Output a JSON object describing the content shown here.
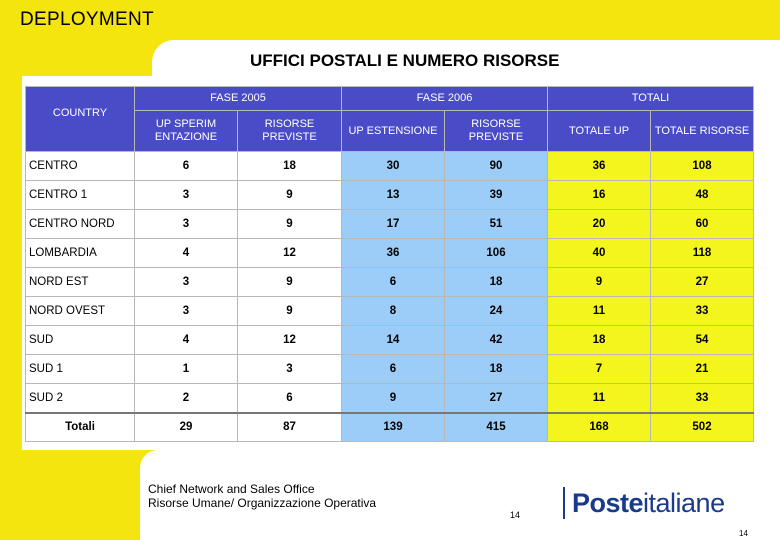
{
  "header": {
    "section": "DEPLOYMENT",
    "title": "UFFICI POSTALI E NUMERO RISORSE"
  },
  "table": {
    "groups": [
      "FASE 2005",
      "FASE 2006",
      "TOTALI"
    ],
    "country_label": "COUNTRY",
    "columns": [
      "UP SPERIM ENTAZIONE",
      "RISORSE PREVISTE",
      "UP ESTENSIONE",
      "RISORSE PREVISTE",
      "TOTALE UP",
      "TOTALE RISORSE"
    ],
    "rows": [
      {
        "label": "CENTRO",
        "values": [
          "6",
          "18",
          "30",
          "90",
          "36",
          "108"
        ]
      },
      {
        "label": "CENTRO 1",
        "values": [
          "3",
          "9",
          "13",
          "39",
          "16",
          "48"
        ]
      },
      {
        "label": "CENTRO NORD",
        "values": [
          "3",
          "9",
          "17",
          "51",
          "20",
          "60"
        ]
      },
      {
        "label": "LOMBARDIA",
        "values": [
          "4",
          "12",
          "36",
          "106",
          "40",
          "118"
        ]
      },
      {
        "label": "NORD EST",
        "values": [
          "3",
          "9",
          "6",
          "18",
          "9",
          "27"
        ]
      },
      {
        "label": "NORD OVEST",
        "values": [
          "3",
          "9",
          "8",
          "24",
          "11",
          "33"
        ]
      },
      {
        "label": "SUD",
        "values": [
          "4",
          "12",
          "14",
          "42",
          "18",
          "54"
        ]
      },
      {
        "label": "SUD 1",
        "values": [
          "1",
          "3",
          "6",
          "18",
          "7",
          "21"
        ]
      },
      {
        "label": "SUD 2",
        "values": [
          "2",
          "6",
          "9",
          "27",
          "11",
          "33"
        ]
      }
    ],
    "totals": {
      "label": "Totali",
      "values": [
        "29",
        "87",
        "139",
        "415",
        "168",
        "502"
      ]
    }
  },
  "footer": {
    "office_line1": "Chief Network and Sales Office",
    "office_line2": "Risorse Umane/ Organizzazione Operativa",
    "page_number_mid": "14",
    "page_number_right": "14",
    "logo_bold": "Poste",
    "logo_regular": "italiane"
  },
  "colors": {
    "frame_yellow": "#f5e50e",
    "header_blue": "#4a4cc7",
    "phase2006_blue": "#9ccdf8",
    "totals_yellow": "#f5f51e",
    "logo_blue": "#1a3a8c"
  }
}
